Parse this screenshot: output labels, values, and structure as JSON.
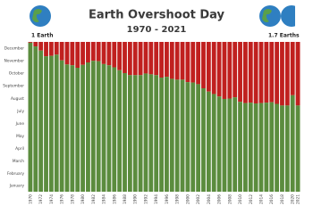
{
  "chart_data": {
    "type": "bar",
    "title": "Earth Overshoot Day",
    "subtitle": "1970 - 2021",
    "annotations": [
      "1 Earth",
      "1.7 Earths"
    ],
    "categories": [
      "1970",
      null,
      "1972",
      null,
      "1974",
      null,
      "1976",
      null,
      "1978",
      null,
      "1980",
      null,
      "1982",
      null,
      "1984",
      null,
      "1986",
      null,
      "1988",
      null,
      "1990",
      null,
      "1992",
      null,
      "1994",
      null,
      "1996",
      null,
      "1998",
      null,
      "2000",
      null,
      "2002",
      null,
      "2004",
      null,
      "2006",
      null,
      "2008",
      null,
      "2010",
      null,
      "2012",
      null,
      "2014",
      null,
      "2016",
      null,
      "2018",
      null,
      "2020",
      "2021"
    ],
    "values": [
      363,
      354,
      344,
      330,
      331,
      334,
      320,
      310,
      308,
      302,
      309,
      315,
      319,
      318,
      311,
      308,
      303,
      296,
      289,
      284,
      284,
      284,
      288,
      286,
      284,
      278,
      280,
      275,
      273,
      273,
      267,
      266,
      262,
      252,
      244,
      238,
      232,
      226,
      227,
      230,
      219,
      216,
      217,
      215,
      216,
      217,
      218,
      214,
      210,
      210,
      235,
      210
    ],
    "color": "#5b8c3e",
    "remainder_color": "#c0201f",
    "ylim": [
      0,
      365
    ],
    "yticks": [
      {
        "value": 15.5,
        "label": "January"
      },
      {
        "value": 45,
        "label": "February"
      },
      {
        "value": 74.5,
        "label": "March"
      },
      {
        "value": 105,
        "label": "April"
      },
      {
        "value": 135.5,
        "label": "May"
      },
      {
        "value": 166,
        "label": "June"
      },
      {
        "value": 196.5,
        "label": "July"
      },
      {
        "value": 227.5,
        "label": "August"
      },
      {
        "value": 258,
        "label": "September"
      },
      {
        "value": 288.5,
        "label": "October"
      },
      {
        "value": 319,
        "label": "November"
      },
      {
        "value": 349.5,
        "label": "December"
      }
    ]
  }
}
